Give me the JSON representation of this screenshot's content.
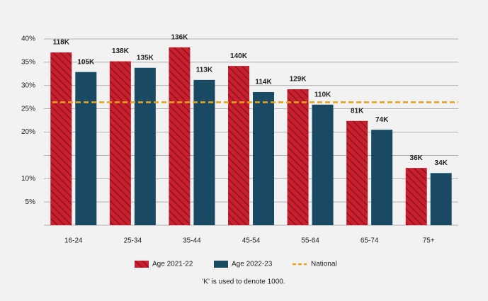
{
  "chart_data": {
    "type": "bar",
    "categories": [
      "16-24",
      "25-34",
      "35-44",
      "45-54",
      "55-64",
      "65-74",
      "75+"
    ],
    "series": [
      {
        "name": "Age 2021-22",
        "color": "#c8202e",
        "hatch": true,
        "values": [
          37.1,
          35.2,
          38.2,
          34.2,
          29.2,
          22.4,
          12.3
        ],
        "labels": [
          "118K",
          "138K",
          "136K",
          "140K",
          "129K",
          "81K",
          "36K"
        ]
      },
      {
        "name": "Age 2022-23",
        "color": "#1a4a63",
        "hatch": false,
        "values": [
          32.9,
          33.8,
          31.2,
          28.6,
          25.9,
          20.5,
          11.2
        ],
        "labels": [
          "105K",
          "135K",
          "113K",
          "114K",
          "110K",
          "74K",
          "34K"
        ]
      }
    ],
    "reference_line": {
      "name": "National",
      "value": 26.4,
      "color": "#e8a317"
    },
    "ylim": [
      0,
      40
    ],
    "yticks": [
      {
        "value": 5,
        "label": "5%"
      },
      {
        "value": 10,
        "label": "10%"
      },
      {
        "value": 15,
        "label": null
      },
      {
        "value": 20,
        "label": "20%"
      },
      {
        "value": 25,
        "label": "25%"
      },
      {
        "value": 30,
        "label": "30%"
      },
      {
        "value": 35,
        "label": "35%"
      },
      {
        "value": 40,
        "label": "40%"
      }
    ],
    "grid": true,
    "note": "'K' is used to denote 1000."
  }
}
